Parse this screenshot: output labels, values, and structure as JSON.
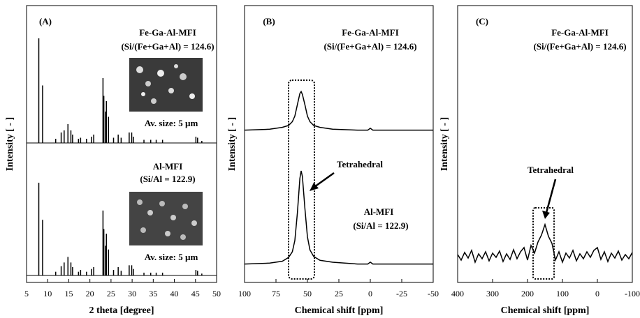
{
  "chart_data": [
    {
      "type": "stem",
      "title": "(A)",
      "x_label": "2 theta [degree]",
      "y_label": "Intensity [ - ]",
      "xlim": [
        5,
        50
      ],
      "xticks": [
        5,
        10,
        15,
        20,
        25,
        30,
        35,
        40,
        45,
        50
      ],
      "series": [
        {
          "name": "Fe-Ga-Al-MFI",
          "ratio": "(Si/(Fe+Ga+Al) = 124.6)",
          "size_label": "Av. size: 5 µm",
          "color": "#000000",
          "x": [
            7.9,
            8.8,
            11.9,
            13.2,
            13.9,
            14.8,
            15.5,
            15.9,
            17.3,
            17.8,
            19.2,
            20.4,
            20.9,
            23.1,
            23.3,
            23.7,
            23.9,
            24.4,
            25.6,
            26.7,
            27.4,
            29.3,
            29.9,
            30.3,
            32.8,
            34.4,
            35.7,
            37.2,
            45.1,
            45.5,
            46.5
          ],
          "values": [
            100,
            55,
            4,
            10,
            12,
            18,
            12,
            8,
            4,
            5,
            4,
            6,
            8,
            62,
            45,
            30,
            40,
            25,
            5,
            8,
            5,
            10,
            10,
            6,
            3,
            3,
            3,
            3,
            6,
            5,
            2
          ]
        },
        {
          "name": "Al-MFI",
          "ratio": "(Si/Al = 122.9)",
          "size_label": "Av. size: 5 µm",
          "color": "#000000",
          "x": [
            7.9,
            8.8,
            11.9,
            13.2,
            13.9,
            14.8,
            15.5,
            15.9,
            17.3,
            17.8,
            19.2,
            20.4,
            20.9,
            23.1,
            23.3,
            23.7,
            23.9,
            24.4,
            25.6,
            26.7,
            27.4,
            29.3,
            29.9,
            30.3,
            32.8,
            34.4,
            35.7,
            37.2,
            45.1,
            45.5,
            46.5
          ],
          "values": [
            100,
            60,
            4,
            10,
            14,
            20,
            14,
            9,
            4,
            6,
            4,
            7,
            9,
            70,
            50,
            32,
            45,
            28,
            6,
            9,
            5,
            11,
            11,
            7,
            3,
            3,
            3,
            3,
            6,
            5,
            2
          ]
        }
      ]
    },
    {
      "type": "line",
      "title": "(B)",
      "x_label": "Chemical shift [ppm]",
      "y_label": "Intensity [ - ]",
      "xlim": [
        100,
        -50
      ],
      "xticks": [
        100,
        75,
        50,
        25,
        0,
        -25,
        -50
      ],
      "annotations": [
        "Tetrahedral"
      ],
      "series": [
        {
          "name": "Fe-Ga-Al-MFI",
          "ratio": "(Si/(Fe+Ga+Al) = 124.6)",
          "color": "#000000",
          "x": [
            100,
            80,
            70,
            65,
            62,
            60,
            58,
            56,
            55,
            54,
            52,
            50,
            48,
            45,
            40,
            30,
            10,
            2,
            0,
            -2,
            -10,
            -50
          ],
          "values": [
            1,
            2,
            4,
            6,
            10,
            16,
            28,
            40,
            42,
            39,
            28,
            16,
            10,
            6,
            4,
            2,
            1,
            1,
            3,
            1,
            1,
            1
          ]
        },
        {
          "name": "Al-MFI",
          "ratio": "(Si/Al = 122.9)",
          "color": "#000000",
          "x": [
            100,
            80,
            70,
            65,
            62,
            60,
            58,
            56,
            55,
            54,
            52,
            50,
            48,
            45,
            40,
            30,
            10,
            2,
            0,
            -2,
            -10,
            -50
          ],
          "values": [
            1,
            2,
            4,
            8,
            14,
            26,
            55,
            92,
            100,
            94,
            60,
            30,
            16,
            9,
            5,
            3,
            1,
            1,
            3,
            1,
            1,
            1
          ]
        }
      ]
    },
    {
      "type": "line",
      "title": "(C)",
      "x_label": "Chemical shift [ppm]",
      "y_label": "Intensity [ - ]",
      "xlim": [
        400,
        -100
      ],
      "xticks": [
        400,
        300,
        200,
        100,
        0,
        -100
      ],
      "annotations": [
        "Tetrahedral"
      ],
      "series": [
        {
          "name": "Fe-Ga-Al-MFI",
          "ratio": "(Si/(Fe+Ga+Al) = 124.6)",
          "color": "#000000",
          "x": [
            400,
            390,
            380,
            370,
            360,
            350,
            340,
            330,
            320,
            310,
            300,
            290,
            280,
            270,
            260,
            250,
            240,
            230,
            220,
            210,
            200,
            190,
            180,
            170,
            160,
            150,
            140,
            130,
            120,
            110,
            100,
            90,
            80,
            70,
            60,
            50,
            40,
            30,
            20,
            10,
            0,
            -10,
            -20,
            -30,
            -40,
            -50,
            -60,
            -70,
            -80,
            -90,
            -100
          ],
          "values": [
            2,
            -6,
            5,
            -3,
            8,
            -9,
            3,
            -4,
            6,
            -7,
            4,
            -2,
            7,
            -8,
            3,
            -5,
            9,
            -4,
            6,
            12,
            -6,
            15,
            4,
            20,
            30,
            45,
            28,
            18,
            -6,
            6,
            -9,
            4,
            -3,
            8,
            -7,
            3,
            -4,
            6,
            -2,
            8,
            12,
            -5,
            6,
            -8,
            4,
            -3,
            7,
            -6,
            2,
            -4,
            5
          ]
        }
      ]
    }
  ]
}
